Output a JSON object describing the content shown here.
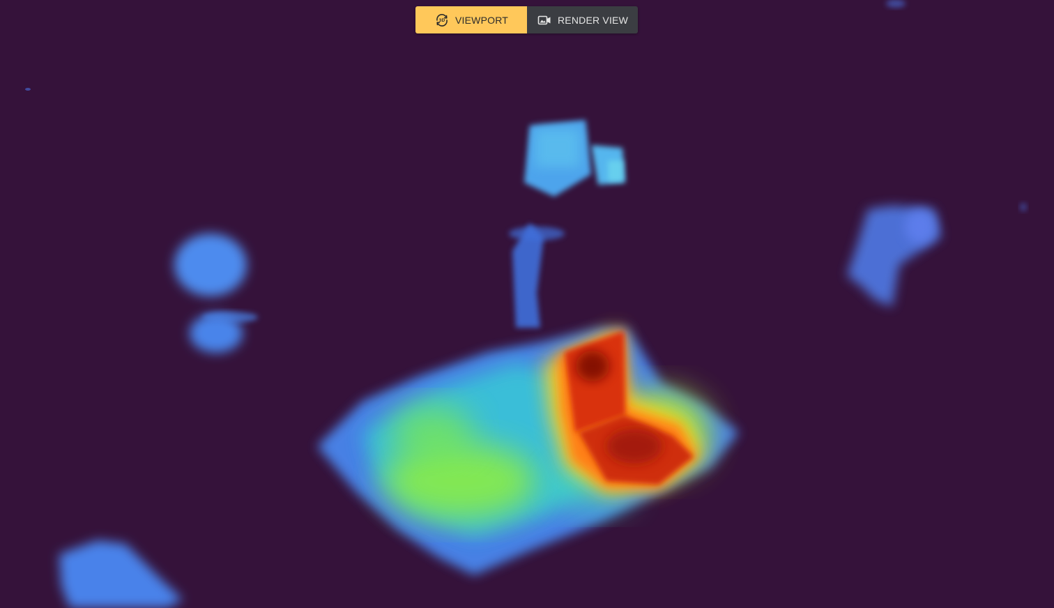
{
  "view_toggle": {
    "viewport_label": "VIEWPORT",
    "render_view_label": "RENDER VIEW",
    "active": "viewport",
    "viewport_icon": "3d-rotate-icon",
    "render_view_icon": "camera-image-icon"
  },
  "colors": {
    "background": "#35123a",
    "active_button": "#ffc85a",
    "inactive_button": "#3b3d42"
  }
}
